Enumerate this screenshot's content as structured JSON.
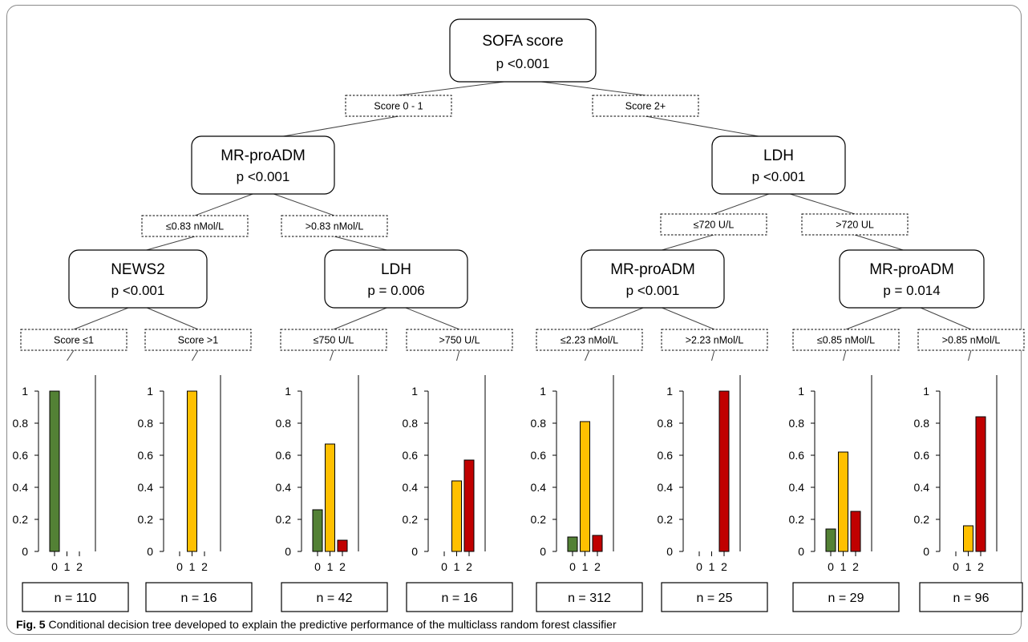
{
  "nodes": [
    {
      "id": "sofa",
      "title": "SOFA score",
      "p": "p <0.001"
    },
    {
      "id": "mrproadm-left",
      "title": "MR-proADM",
      "p": "p <0.001"
    },
    {
      "id": "ldh-right",
      "title": "LDH",
      "p": "p <0.001"
    },
    {
      "id": "news2",
      "title": "NEWS2",
      "p": "p <0.001"
    },
    {
      "id": "ldh-mid",
      "title": "LDH",
      "p": "p = 0.006"
    },
    {
      "id": "mrproadm-mid",
      "title": "MR-proADM",
      "p": "p <0.001"
    },
    {
      "id": "mrproadm-right",
      "title": "MR-proADM",
      "p": "p = 0.014"
    }
  ],
  "edges": [
    {
      "label": "Score 0 - 1"
    },
    {
      "label": "Score 2+"
    },
    {
      "label": "≤0.83 nMol/L"
    },
    {
      "label": ">0.83 nMol/L"
    },
    {
      "label": "≤720 U/L"
    },
    {
      "label": ">720 UL"
    },
    {
      "label": "Score ≤1"
    },
    {
      "label": "Score >1"
    },
    {
      "label": "≤750 U/L"
    },
    {
      "label": ">750 U/L"
    },
    {
      "label": "≤2.23 nMol/L"
    },
    {
      "label": ">2.23 nMol/L"
    },
    {
      "label": "≤0.85 nMol/L"
    },
    {
      "label": ">0.85 nMol/L"
    }
  ],
  "chart_data": {
    "type": "bar",
    "categories": [
      "0",
      "1",
      "2"
    ],
    "ylim": [
      0,
      1
    ],
    "yticks": [
      "0",
      "0.2",
      "0.4",
      "0.6",
      "0.8",
      "1"
    ],
    "class_colors": [
      "#538135",
      "#ffc000",
      "#c00000"
    ],
    "leaves": [
      {
        "n_label": "n = 110",
        "values": [
          1.0,
          0,
          0
        ]
      },
      {
        "n_label": "n = 16",
        "values": [
          0,
          1.0,
          0
        ]
      },
      {
        "n_label": "n = 42",
        "values": [
          0.26,
          0.67,
          0.07
        ]
      },
      {
        "n_label": "n = 16",
        "values": [
          0,
          0.44,
          0.57
        ]
      },
      {
        "n_label": "n = 312",
        "values": [
          0.09,
          0.81,
          0.1
        ]
      },
      {
        "n_label": "n = 25",
        "values": [
          0,
          0,
          1.0
        ]
      },
      {
        "n_label": "n = 29",
        "values": [
          0.14,
          0.62,
          0.25
        ]
      },
      {
        "n_label": "n = 96",
        "values": [
          0,
          0.16,
          0.84
        ]
      }
    ]
  },
  "caption": {
    "label": "Fig. 5",
    "text": "Conditional decision tree developed to explain the predictive performance of the multiclass random forest classifier"
  }
}
